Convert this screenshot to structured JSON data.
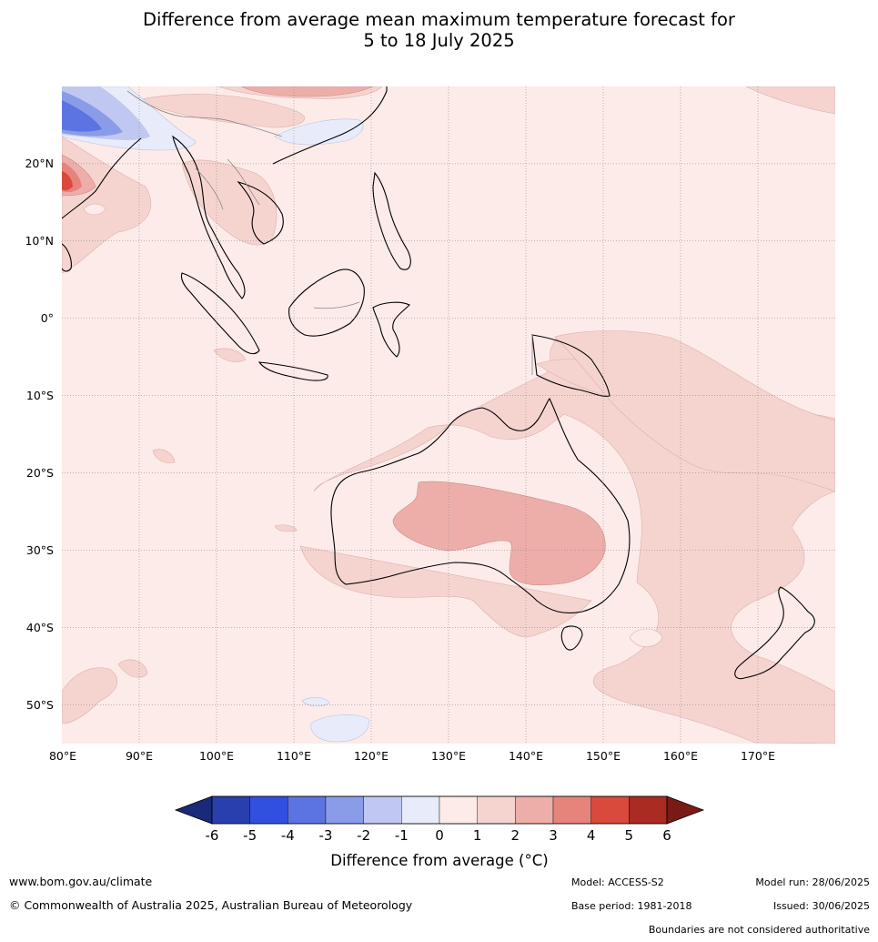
{
  "title": {
    "line1": "Difference from average mean maximum temperature forecast for",
    "line2": "5 to 18 July 2025"
  },
  "map": {
    "lat_labels": [
      "20°N",
      "10°N",
      "0°",
      "10°S",
      "20°S",
      "30°S",
      "40°S",
      "50°S"
    ],
    "lon_labels": [
      "80°E",
      "90°E",
      "100°E",
      "110°E",
      "120°E",
      "130°E",
      "140°E",
      "150°E",
      "160°E",
      "170°E"
    ],
    "extent": {
      "lon": [
        80,
        180
      ],
      "lat": [
        -55,
        30
      ]
    }
  },
  "colorbar": {
    "label": "Difference from average (°C)",
    "ticks": [
      "-6",
      "-5",
      "-4",
      "-3",
      "-2",
      "-1",
      "0",
      "1",
      "2",
      "3",
      "4",
      "5",
      "6"
    ],
    "colors": [
      "#2a3fae",
      "#3150e0",
      "#5c74e2",
      "#8a9ce8",
      "#c0c8f2",
      "#e8ecfa",
      "#fcebe8",
      "#f5d4d0",
      "#edaeaa",
      "#e6847c",
      "#d94a3c",
      "#a92b22"
    ],
    "under_color": "#1a2a78",
    "over_color": "#7a1a16"
  },
  "footer": {
    "url": "www.bom.gov.au/climate",
    "copyright": "© Commonwealth of Australia 2025, Australian Bureau of Meteorology",
    "model": "Model: ACCESS-S2",
    "base_period": "Base period: 1981-2018",
    "model_run": "Model run: 28/06/2025",
    "issued": "Issued: 30/06/2025",
    "disclaimer": "Boundaries are not considered authoritative"
  }
}
